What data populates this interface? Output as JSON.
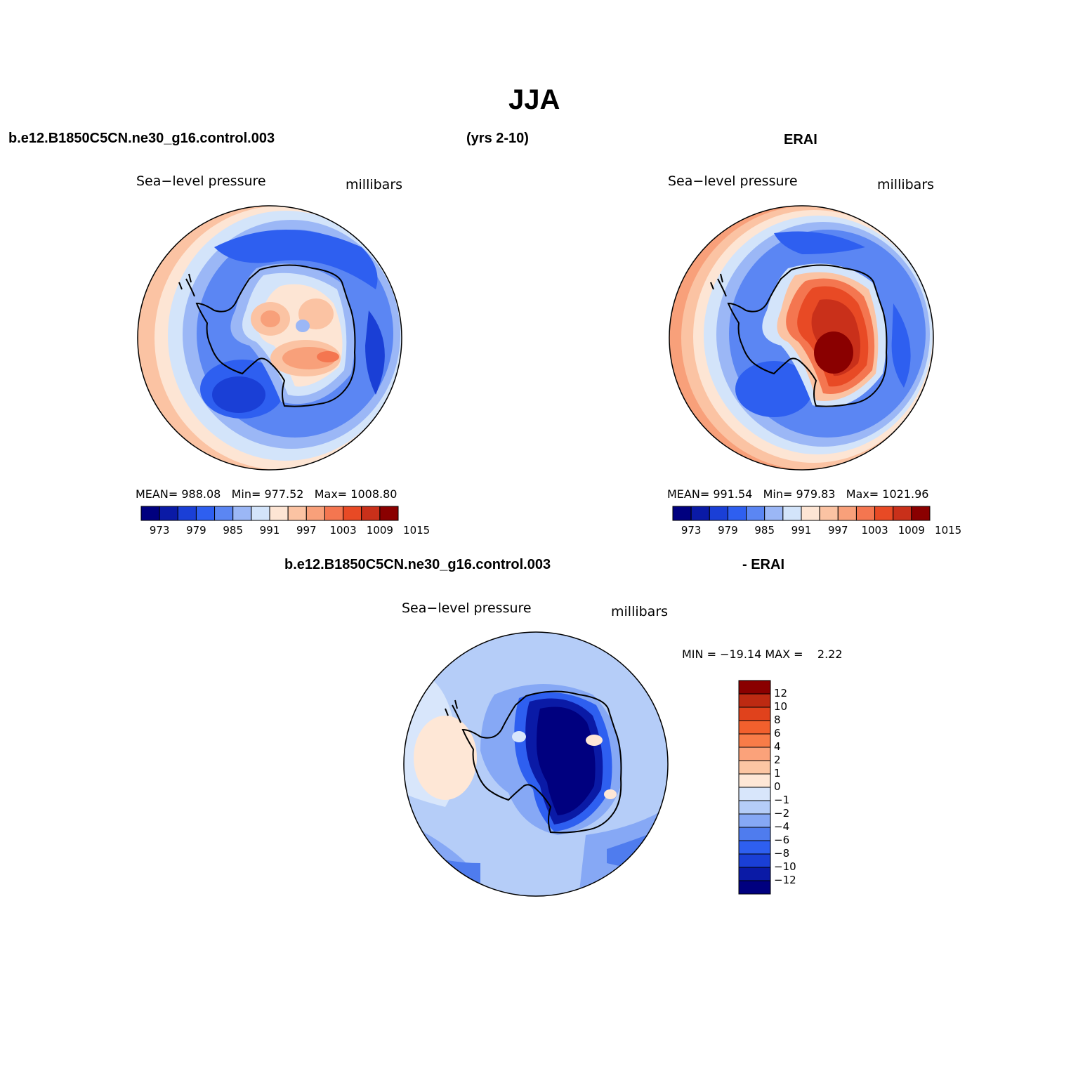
{
  "figure": {
    "title": "JJA",
    "top_left_header": "b.e12.B1850C5CN.ne30_g16.control.003",
    "top_center_header": "(yrs 2-10)",
    "top_right_header": "ERAI",
    "bottom_header_left": "b.e12.B1850C5CN.ne30_g16.control.003",
    "bottom_header_right": "- ERAI"
  },
  "panels": [
    {
      "id": "model",
      "variable": "Sea−level pressure",
      "units": "millibars",
      "stats": {
        "mean_label": "MEAN=",
        "mean": "988.08",
        "min_label": "Min=",
        "min": "977.52",
        "max_label": "Max=",
        "max": "1008.80"
      },
      "colorbar_ticks": [
        "973",
        "979",
        "985",
        "991",
        "997",
        "1003",
        "1009",
        "1015"
      ]
    },
    {
      "id": "obs",
      "variable": "Sea−level pressure",
      "units": "millibars",
      "stats": {
        "mean_label": "MEAN=",
        "mean": "991.54",
        "min_label": "Min=",
        "min": "979.83",
        "max_label": "Max=",
        "max": "1021.96"
      },
      "colorbar_ticks": [
        "973",
        "979",
        "985",
        "991",
        "997",
        "1003",
        "1009",
        "1015"
      ]
    },
    {
      "id": "difference",
      "variable": "Sea−level pressure",
      "units": "millibars",
      "stats_text": "MIN = −19.14 MAX =    2.22",
      "colorbar_ticks": [
        "12",
        "10",
        "8",
        "6",
        "4",
        "2",
        "1",
        "0",
        "−1",
        "−2",
        "−4",
        "−6",
        "−8",
        "−10",
        "−12"
      ]
    }
  ],
  "colors": {
    "abs_scale": [
      "#00007f",
      "#0a1aa6",
      "#1a3fd6",
      "#2e5ff0",
      "#5b86f3",
      "#9bb7f6",
      "#d3e4fa",
      "#fde5d4",
      "#fbc3a3",
      "#f8a07a",
      "#f47650",
      "#e84a25",
      "#c9301a",
      "#8a0000"
    ],
    "diff_scale_top_to_bottom": [
      "#8a0000",
      "#bd2a12",
      "#e0421c",
      "#f2602d",
      "#f87c48",
      "#fba27a",
      "#fcc6a3",
      "#fee7d6",
      "#d8e6fb",
      "#b5cdf8",
      "#86a8f5",
      "#4f7cee",
      "#2e5ff0",
      "#1a3fd6",
      "#0a1aa6",
      "#00007f"
    ],
    "coast": "#000000"
  }
}
